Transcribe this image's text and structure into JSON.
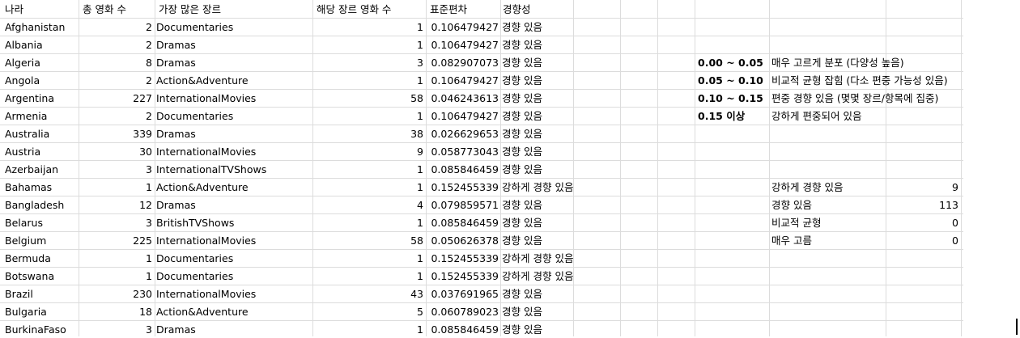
{
  "headers": [
    "나라",
    "총 영화 수",
    "가장 많은 장르",
    "해당 장르 영화 수",
    "표준편차",
    "경향성"
  ],
  "rows": [
    [
      "Afghanistan",
      "2",
      "Documentaries",
      "1",
      "0.106479427",
      "경향 있음"
    ],
    [
      "Albania",
      "2",
      "Dramas",
      "1",
      "0.106479427",
      "경향 있음"
    ],
    [
      "Algeria",
      "8",
      "Dramas",
      "3",
      "0.082907073",
      "경향 있음"
    ],
    [
      "Angola",
      "2",
      "Action&Adventure",
      "1",
      "0.106479427",
      "경향 있음"
    ],
    [
      "Argentina",
      "227",
      "InternationalMovies",
      "58",
      "0.046243613",
      "경향 있음"
    ],
    [
      "Armenia",
      "2",
      "Documentaries",
      "1",
      "0.106479427",
      "경향 있음"
    ],
    [
      "Australia",
      "339",
      "Dramas",
      "38",
      "0.026629653",
      "경향 있음"
    ],
    [
      "Austria",
      "30",
      "InternationalMovies",
      "9",
      "0.058773043",
      "경향 있음"
    ],
    [
      "Azerbaijan",
      "3",
      "InternationalTVShows",
      "1",
      "0.085846459",
      "경향 있음"
    ],
    [
      "Bahamas",
      "1",
      "Action&Adventure",
      "1",
      "0.152455339",
      "강하게 경향 있음"
    ],
    [
      "Bangladesh",
      "12",
      "Dramas",
      "4",
      "0.079859571",
      "경향 있음"
    ],
    [
      "Belarus",
      "3",
      "BritishTVShows",
      "1",
      "0.085846459",
      "경향 있음"
    ],
    [
      "Belgium",
      "225",
      "InternationalMovies",
      "58",
      "0.050626378",
      "경향 있음"
    ],
    [
      "Bermuda",
      "1",
      "Documentaries",
      "1",
      "0.152455339",
      "강하게 경향 있음"
    ],
    [
      "Botswana",
      "1",
      "Documentaries",
      "1",
      "0.152455339",
      "강하게 경향 있음"
    ],
    [
      "Brazil",
      "230",
      "InternationalMovies",
      "43",
      "0.037691965",
      "경향 있음"
    ],
    [
      "Bulgaria",
      "18",
      "Action&Adventure",
      "5",
      "0.060789023",
      "경향 있음"
    ],
    [
      "BurkinaFaso",
      "3",
      "Dramas",
      "1",
      "0.085846459",
      "경향 있음"
    ]
  ],
  "legend": [
    {
      "range": "0.00 ~ 0.05",
      "desc": "매우 고르게 분포 (다양성 높음)"
    },
    {
      "range": "0.05 ~ 0.10",
      "desc": "비교적 균형 잡힘 (다소 편중 가능성 있음)"
    },
    {
      "range": "0.10 ~ 0.15",
      "desc": "편중 경향 있음 (몇몇 장르/항목에 집중)"
    },
    {
      "range": "0.15 이상",
      "desc": "강하게 편중되어 있음"
    }
  ],
  "summary": [
    {
      "label": "강하게 경향 있음",
      "count": "9"
    },
    {
      "label": "경향 있음",
      "count": "113"
    },
    {
      "label": "비교적 균형",
      "count": "0"
    },
    {
      "label": "매우 고름",
      "count": "0"
    }
  ]
}
